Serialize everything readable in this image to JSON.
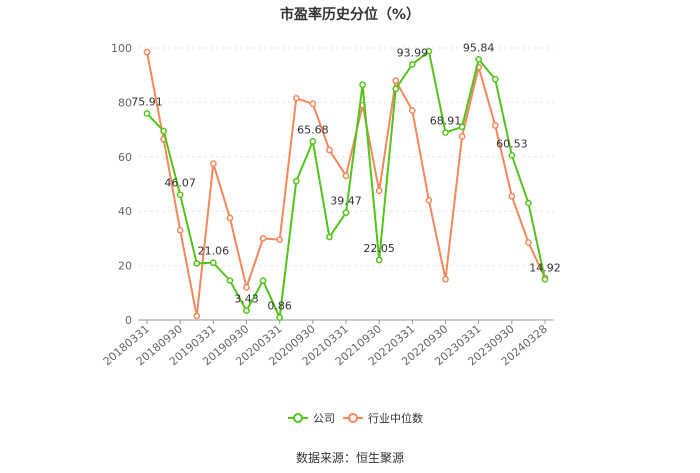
{
  "chart_data": {
    "type": "line",
    "title": "市盈率历史分位（%）",
    "source": "数据来源：恒生聚源",
    "ylim": [
      0,
      100
    ],
    "yticks": [
      0,
      20,
      40,
      60,
      80,
      100
    ],
    "grid": true,
    "legend_position": "bottom-center",
    "x": [
      "20180331",
      "20180630",
      "20180930",
      "20181231",
      "20190331",
      "20190630",
      "20190930",
      "20191231",
      "20200331",
      "20200630",
      "20200930",
      "20201231",
      "20210331",
      "20210630",
      "20210930",
      "20211231",
      "20220331",
      "20220630",
      "20220930",
      "20221231",
      "20230331",
      "20230630",
      "20230930",
      "20231231",
      "20240328"
    ],
    "x_tick_labels": [
      "20180331",
      "20180930",
      "20190331",
      "20190930",
      "20200331",
      "20200930",
      "20210331",
      "20210930",
      "20220331",
      "20220930",
      "20230331",
      "20230930",
      "20240328"
    ],
    "series": [
      {
        "name": "公司",
        "color": "#52c41a",
        "values": [
          75.91,
          69.5,
          46.07,
          20.8,
          21.06,
          14.5,
          3.43,
          14.5,
          0.86,
          51.0,
          65.68,
          30.5,
          39.47,
          86.5,
          22.05,
          85.0,
          93.99,
          98.8,
          68.91,
          71.0,
          95.84,
          88.5,
          60.53,
          43.0,
          14.92
        ],
        "labels": {
          "0": "75.91",
          "2": "46.07",
          "4": "21.06",
          "6": "3.43",
          "8": "0.86",
          "10": "65.68",
          "12": "39.47",
          "14": "22.05",
          "16": "93.99",
          "18": "68.91",
          "20": "95.84",
          "22": "60.53",
          "24": "14.92"
        }
      },
      {
        "name": "行业中位数",
        "color": "#f4875c",
        "values": [
          98.5,
          66.5,
          33.0,
          1.5,
          57.5,
          37.5,
          12.0,
          30.0,
          29.5,
          81.5,
          79.5,
          62.5,
          53.0,
          79.0,
          47.5,
          88.0,
          77.0,
          44.0,
          15.0,
          67.5,
          93.0,
          71.5,
          45.5,
          28.5,
          15.5
        ]
      }
    ]
  }
}
